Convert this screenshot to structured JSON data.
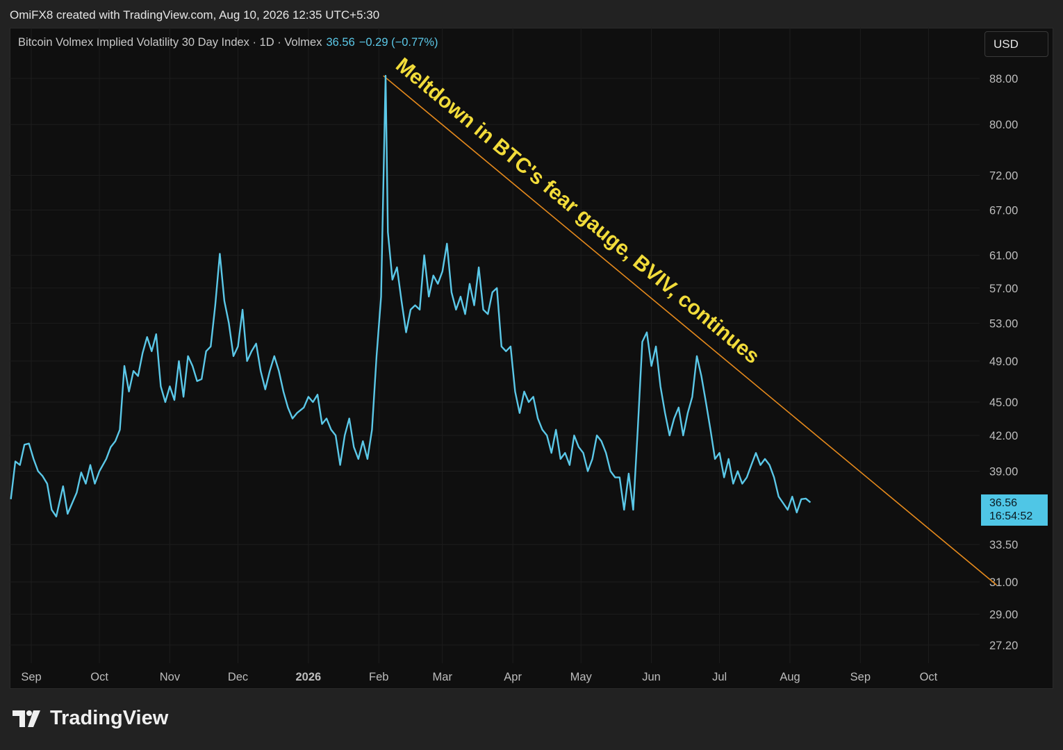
{
  "header": {
    "credit": "OmiFX8 created with TradingView.com, Aug 10, 2026 12:35 UTC+5:30"
  },
  "legend": {
    "symbol": "Bitcoin Volmex Implied Volatility 30 Day Index · 1D · Volmex",
    "price": "36.56",
    "change": "−0.29 (−0.77%)"
  },
  "currency_button": "USD",
  "price_badge": {
    "price": "36.56",
    "countdown": "16:54:52"
  },
  "footer": {
    "brand": "TradingView"
  },
  "colors": {
    "line": "#5bc8e8",
    "trendline": "#e68a1c",
    "annotation": "#f2dc3a",
    "background": "#0f0f0f"
  },
  "chart_data": {
    "type": "line",
    "title": "Bitcoin Volmex Implied Volatility 30 Day Index",
    "annotation": "Meltdown in BTC's fear gauge, BVIV, continues",
    "y_scale": "log",
    "y_ticks": [
      "88.00",
      "80.00",
      "72.00",
      "67.00",
      "61.00",
      "57.00",
      "53.00",
      "49.00",
      "45.00",
      "42.00",
      "39.00",
      "33.50",
      "31.00",
      "29.00",
      "27.20"
    ],
    "x_ticks": [
      "Sep",
      "Oct",
      "Nov",
      "Dec",
      "2026",
      "Feb",
      "Mar",
      "Apr",
      "May",
      "Jun",
      "Jul",
      "Aug",
      "Sep",
      "Oct"
    ],
    "x_ticks_bold": [
      "2026"
    ],
    "ylim": [
      26.5,
      92
    ],
    "trendline": [
      {
        "x": "2026-02-03",
        "y": 88.5
      },
      {
        "x": "2026-10-31",
        "y": 30.8
      }
    ],
    "series": [
      {
        "points": [
          [
            "2025-08-23",
            36.8
          ],
          [
            "2025-08-25",
            39.8
          ],
          [
            "2025-08-27",
            39.5
          ],
          [
            "2025-08-29",
            41.2
          ],
          [
            "2025-08-31",
            41.3
          ],
          [
            "2025-09-02",
            40.0
          ],
          [
            "2025-09-04",
            39.0
          ],
          [
            "2025-09-06",
            38.6
          ],
          [
            "2025-09-08",
            38.0
          ],
          [
            "2025-09-10",
            36.0
          ],
          [
            "2025-09-12",
            35.5
          ],
          [
            "2025-09-15",
            37.8
          ],
          [
            "2025-09-17",
            35.7
          ],
          [
            "2025-09-19",
            36.5
          ],
          [
            "2025-09-21",
            37.3
          ],
          [
            "2025-09-23",
            38.9
          ],
          [
            "2025-09-25",
            38.0
          ],
          [
            "2025-09-27",
            39.5
          ],
          [
            "2025-09-29",
            38.0
          ],
          [
            "2025-10-01",
            39.0
          ],
          [
            "2025-10-04",
            40.0
          ],
          [
            "2025-10-06",
            41.0
          ],
          [
            "2025-10-08",
            41.5
          ],
          [
            "2025-10-10",
            42.5
          ],
          [
            "2025-10-12",
            48.5
          ],
          [
            "2025-10-14",
            46.0
          ],
          [
            "2025-10-16",
            48.0
          ],
          [
            "2025-10-18",
            47.5
          ],
          [
            "2025-10-20",
            49.8
          ],
          [
            "2025-10-22",
            51.5
          ],
          [
            "2025-10-24",
            50.0
          ],
          [
            "2025-10-26",
            51.8
          ],
          [
            "2025-10-28",
            46.5
          ],
          [
            "2025-10-30",
            45.0
          ],
          [
            "2025-11-01",
            46.5
          ],
          [
            "2025-11-03",
            45.2
          ],
          [
            "2025-11-05",
            49.0
          ],
          [
            "2025-11-07",
            45.5
          ],
          [
            "2025-11-09",
            49.5
          ],
          [
            "2025-11-11",
            48.5
          ],
          [
            "2025-11-13",
            47.0
          ],
          [
            "2025-11-15",
            47.2
          ],
          [
            "2025-11-17",
            50.0
          ],
          [
            "2025-11-19",
            50.5
          ],
          [
            "2025-11-21",
            55.0
          ],
          [
            "2025-11-23",
            61.2
          ],
          [
            "2025-11-25",
            55.5
          ],
          [
            "2025-11-27",
            53.0
          ],
          [
            "2025-11-29",
            49.5
          ],
          [
            "2025-12-01",
            50.5
          ],
          [
            "2025-12-03",
            54.5
          ],
          [
            "2025-12-05",
            49.0
          ],
          [
            "2025-12-07",
            50.0
          ],
          [
            "2025-12-09",
            50.8
          ],
          [
            "2025-12-11",
            48.0
          ],
          [
            "2025-12-13",
            46.2
          ],
          [
            "2025-12-15",
            48.0
          ],
          [
            "2025-12-17",
            49.5
          ],
          [
            "2025-12-19",
            48.0
          ],
          [
            "2025-12-21",
            46.0
          ],
          [
            "2025-12-23",
            44.5
          ],
          [
            "2025-12-25",
            43.5
          ],
          [
            "2025-12-27",
            44.0
          ],
          [
            "2025-12-30",
            44.5
          ],
          [
            "2026-01-01",
            45.5
          ],
          [
            "2026-01-03",
            45.0
          ],
          [
            "2026-01-05",
            45.7
          ],
          [
            "2026-01-07",
            43.0
          ],
          [
            "2026-01-09",
            43.5
          ],
          [
            "2026-01-11",
            42.5
          ],
          [
            "2026-01-13",
            42.0
          ],
          [
            "2026-01-15",
            39.5
          ],
          [
            "2026-01-17",
            42.0
          ],
          [
            "2026-01-19",
            43.5
          ],
          [
            "2026-01-21",
            41.0
          ],
          [
            "2026-01-23",
            40.0
          ],
          [
            "2026-01-25",
            41.5
          ],
          [
            "2026-01-27",
            40.0
          ],
          [
            "2026-01-29",
            42.5
          ],
          [
            "2026-01-31",
            49.5
          ],
          [
            "2026-02-02",
            56.0
          ],
          [
            "2026-02-04",
            88.5
          ],
          [
            "2026-02-05",
            64.0
          ],
          [
            "2026-02-07",
            58.0
          ],
          [
            "2026-02-09",
            59.5
          ],
          [
            "2026-02-11",
            55.5
          ],
          [
            "2026-02-13",
            52.0
          ],
          [
            "2026-02-15",
            54.5
          ],
          [
            "2026-02-17",
            55.0
          ],
          [
            "2026-02-19",
            54.5
          ],
          [
            "2026-02-21",
            61.0
          ],
          [
            "2026-02-23",
            56.0
          ],
          [
            "2026-02-25",
            58.5
          ],
          [
            "2026-02-27",
            57.5
          ],
          [
            "2026-03-01",
            59.0
          ],
          [
            "2026-03-03",
            62.5
          ],
          [
            "2026-03-05",
            56.5
          ],
          [
            "2026-03-07",
            54.5
          ],
          [
            "2026-03-09",
            56.0
          ],
          [
            "2026-03-11",
            54.0
          ],
          [
            "2026-03-13",
            57.5
          ],
          [
            "2026-03-15",
            55.0
          ],
          [
            "2026-03-17",
            59.5
          ],
          [
            "2026-03-19",
            54.5
          ],
          [
            "2026-03-21",
            54.0
          ],
          [
            "2026-03-23",
            56.5
          ],
          [
            "2026-03-25",
            57.0
          ],
          [
            "2026-03-27",
            50.5
          ],
          [
            "2026-03-29",
            50.0
          ],
          [
            "2026-03-31",
            50.5
          ],
          [
            "2026-04-02",
            46.0
          ],
          [
            "2026-04-04",
            44.0
          ],
          [
            "2026-04-06",
            46.0
          ],
          [
            "2026-04-08",
            45.0
          ],
          [
            "2026-04-10",
            45.5
          ],
          [
            "2026-04-12",
            43.5
          ],
          [
            "2026-04-14",
            42.5
          ],
          [
            "2026-04-16",
            42.0
          ],
          [
            "2026-04-18",
            40.5
          ],
          [
            "2026-04-20",
            42.5
          ],
          [
            "2026-04-22",
            40.0
          ],
          [
            "2026-04-24",
            40.5
          ],
          [
            "2026-04-26",
            39.5
          ],
          [
            "2026-04-28",
            42.0
          ],
          [
            "2026-04-30",
            41.0
          ],
          [
            "2026-05-02",
            40.5
          ],
          [
            "2026-05-04",
            39.0
          ],
          [
            "2026-05-06",
            40.0
          ],
          [
            "2026-05-08",
            42.0
          ],
          [
            "2026-05-10",
            41.5
          ],
          [
            "2026-05-12",
            40.5
          ],
          [
            "2026-05-14",
            39.0
          ],
          [
            "2026-05-16",
            38.5
          ],
          [
            "2026-05-18",
            38.5
          ],
          [
            "2026-05-20",
            36.0
          ],
          [
            "2026-05-22",
            38.8
          ],
          [
            "2026-05-24",
            36.0
          ],
          [
            "2026-05-26",
            42.5
          ],
          [
            "2026-05-28",
            51.0
          ],
          [
            "2026-05-30",
            52.0
          ],
          [
            "2026-06-01",
            48.5
          ],
          [
            "2026-06-03",
            50.5
          ],
          [
            "2026-06-05",
            46.5
          ],
          [
            "2026-06-07",
            44.0
          ],
          [
            "2026-06-09",
            42.0
          ],
          [
            "2026-06-11",
            43.5
          ],
          [
            "2026-06-13",
            44.5
          ],
          [
            "2026-06-15",
            42.0
          ],
          [
            "2026-06-17",
            44.0
          ],
          [
            "2026-06-19",
            45.5
          ],
          [
            "2026-06-21",
            49.5
          ],
          [
            "2026-06-23",
            47.5
          ],
          [
            "2026-06-25",
            45.0
          ],
          [
            "2026-06-27",
            42.5
          ],
          [
            "2026-06-29",
            40.0
          ],
          [
            "2026-07-01",
            40.5
          ],
          [
            "2026-07-03",
            38.5
          ],
          [
            "2026-07-05",
            40.0
          ],
          [
            "2026-07-07",
            38.0
          ],
          [
            "2026-07-09",
            39.0
          ],
          [
            "2026-07-11",
            38.0
          ],
          [
            "2026-07-13",
            38.5
          ],
          [
            "2026-07-15",
            39.5
          ],
          [
            "2026-07-17",
            40.5
          ],
          [
            "2026-07-19",
            39.5
          ],
          [
            "2026-07-21",
            40.0
          ],
          [
            "2026-07-23",
            39.5
          ],
          [
            "2026-07-25",
            38.5
          ],
          [
            "2026-07-27",
            37.0
          ],
          [
            "2026-07-29",
            36.5
          ],
          [
            "2026-07-31",
            36.0
          ],
          [
            "2026-08-02",
            37.0
          ],
          [
            "2026-08-04",
            35.8
          ],
          [
            "2026-08-06",
            36.8
          ],
          [
            "2026-08-08",
            36.85
          ],
          [
            "2026-08-10",
            36.56
          ]
        ]
      }
    ]
  }
}
